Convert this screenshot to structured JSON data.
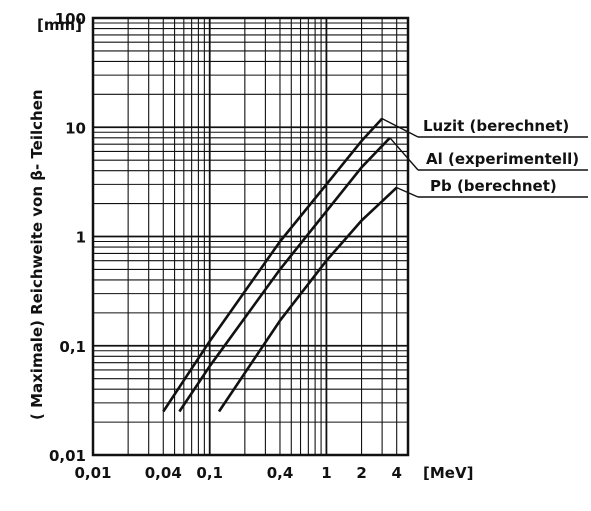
{
  "chart_data": {
    "type": "line",
    "title": "",
    "xlabel": "[MeV]",
    "ylabel": "( Maximale) Reichweite von β- Teilchen",
    "yunit": "[mm]",
    "xscale": "log",
    "yscale": "log",
    "xlim": [
      0.01,
      5
    ],
    "ylim": [
      0.01,
      100
    ],
    "grid": true,
    "x_ticks": [
      "0,01",
      "0,04",
      "0,1",
      "0,4",
      "1",
      "2",
      "4"
    ],
    "x_tick_values": [
      0.01,
      0.04,
      0.1,
      0.4,
      1,
      2,
      4
    ],
    "y_ticks": [
      "100",
      "10",
      "1",
      "0,1",
      "0,01"
    ],
    "y_tick_values": [
      100,
      10,
      1,
      0.1,
      0.01
    ],
    "series": [
      {
        "name": "Luzit (berechnet)",
        "x": [
          0.04,
          0.1,
          0.4,
          1,
          2,
          3
        ],
        "y": [
          0.025,
          0.11,
          0.9,
          3.0,
          7.5,
          12
        ]
      },
      {
        "name": "Al (experimentell)",
        "x": [
          0.055,
          0.1,
          0.4,
          1,
          2,
          3.5
        ],
        "y": [
          0.025,
          0.065,
          0.5,
          1.7,
          4.3,
          8
        ]
      },
      {
        "name": "Pb (berechnet)",
        "x": [
          0.12,
          0.4,
          1,
          2,
          4
        ],
        "y": [
          0.025,
          0.17,
          0.6,
          1.4,
          2.8
        ]
      }
    ]
  }
}
